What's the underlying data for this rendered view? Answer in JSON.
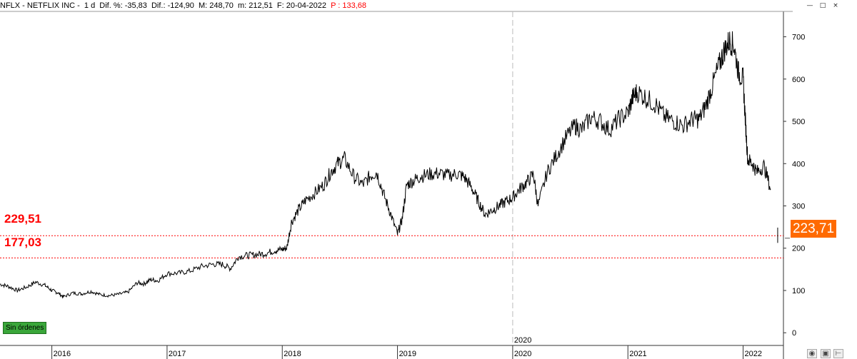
{
  "header": {
    "symbol": "NFLX - NETFLIX INC -",
    "period": "1 d",
    "dif_pct": "Dif. %: -35,83",
    "dif": "Dif.: -124,90",
    "max": "M: 248,70",
    "min": "m: 212,51",
    "date": "F: 20-04-2022",
    "price": "P : 133,68"
  },
  "window_controls": [
    "—",
    "□",
    "×"
  ],
  "status_badge": "Sin órdenes",
  "levels": [
    {
      "label": "229,51",
      "value": 229.51
    },
    {
      "label": "177,03",
      "value": 177.03
    }
  ],
  "last_price": {
    "label": "223,71",
    "value": 223.71
  },
  "bottom_tools": [
    "camera-icon",
    "save-icon",
    "pin-icon"
  ],
  "colors": {
    "levels": "#ff0000",
    "price_tag": "#ff6a00",
    "series": "#000000",
    "badge": "#3aa63a"
  },
  "chart_data": {
    "type": "line",
    "title": "NFLX - NETFLIX INC",
    "xlabel": "",
    "ylabel": "",
    "ylim": [
      -30,
      760
    ],
    "xlim": [
      2015.55,
      2022.35
    ],
    "y_ticks": [
      0,
      100,
      200,
      300,
      400,
      500,
      600,
      700
    ],
    "x_ticks": [
      {
        "label": "2016",
        "value": 2016.0
      },
      {
        "label": "2017",
        "value": 2017.0
      },
      {
        "label": "2018",
        "value": 2018.0
      },
      {
        "label": "2019",
        "value": 2019.0
      },
      {
        "label": "2020",
        "value": 2020.0
      },
      {
        "label": "2021",
        "value": 2021.0
      },
      {
        "label": "2022",
        "value": 2022.0
      }
    ],
    "divider": {
      "label": "2020",
      "value": 2020.0
    },
    "grid": false,
    "series": [
      {
        "x": [
          2015.55,
          2015.62,
          2015.7,
          2015.78,
          2015.86,
          2015.94,
          2016.0,
          2016.05,
          2016.1,
          2016.18,
          2016.26,
          2016.34,
          2016.42,
          2016.5,
          2016.58,
          2016.66,
          2016.74,
          2016.8,
          2016.86,
          2016.92,
          2017.0,
          2017.1,
          2017.2,
          2017.3,
          2017.4,
          2017.48,
          2017.55,
          2017.62,
          2017.7,
          2017.78,
          2017.86,
          2017.94,
          2018.0,
          2018.04,
          2018.08,
          2018.14,
          2018.2,
          2018.28,
          2018.36,
          2018.42,
          2018.48,
          2018.54,
          2018.62,
          2018.7,
          2018.76,
          2018.82,
          2018.88,
          2018.94,
          2019.0,
          2019.04,
          2019.08,
          2019.14,
          2019.2,
          2019.28,
          2019.36,
          2019.44,
          2019.52,
          2019.58,
          2019.64,
          2019.7,
          2019.76,
          2019.82,
          2019.88,
          2019.94,
          2020.0,
          2020.06,
          2020.12,
          2020.18,
          2020.22,
          2020.3,
          2020.38,
          2020.46,
          2020.54,
          2020.6,
          2020.68,
          2020.76,
          2020.84,
          2020.92,
          2021.0,
          2021.04,
          2021.08,
          2021.16,
          2021.24,
          2021.32,
          2021.4,
          2021.48,
          2021.56,
          2021.62,
          2021.68,
          2021.74,
          2021.8,
          2021.84,
          2021.88,
          2021.92,
          2021.96,
          2022.0,
          2022.02,
          2022.04,
          2022.08,
          2022.12,
          2022.18,
          2022.24
        ],
        "values": [
          115,
          110,
          100,
          108,
          120,
          112,
          100,
          95,
          85,
          94,
          92,
          98,
          90,
          88,
          91,
          96,
          118,
          116,
          126,
          123,
          140,
          141,
          146,
          157,
          162,
          162,
          152,
          180,
          183,
          185,
          188,
          195,
          197,
          201,
          262,
          290,
          313,
          330,
          350,
          380,
          400,
          412,
          370,
          350,
          370,
          380,
          328,
          282,
          233,
          268,
          350,
          360,
          370,
          375,
          377,
          372,
          376,
          368,
          345,
          312,
          280,
          290,
          300,
          310,
          320,
          340,
          355,
          375,
          300,
          380,
          420,
          460,
          490,
          480,
          510,
          500,
          480,
          505,
          520,
          555,
          570,
          555,
          540,
          510,
          500,
          490,
          505,
          505,
          540,
          590,
          640,
          670,
          690,
          680,
          615,
          600,
          500,
          410,
          400,
          380,
          395,
          340
        ]
      },
      {
        "x": [
          2022.3,
          2022.3
        ],
        "values": [
          248.7,
          212.51
        ]
      }
    ]
  }
}
